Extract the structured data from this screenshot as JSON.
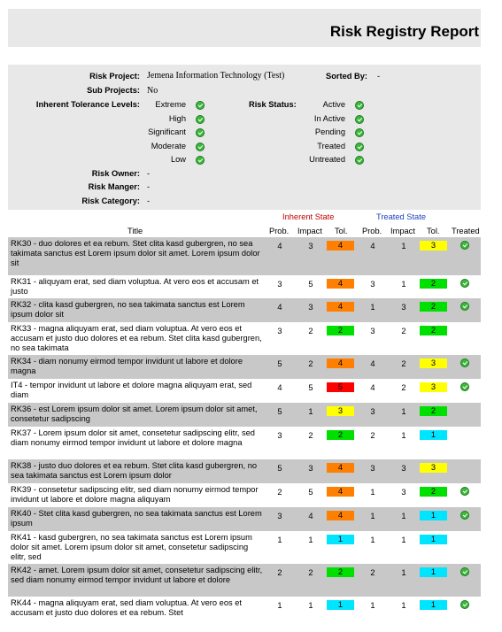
{
  "report": {
    "title": "Risk Registry Report"
  },
  "info": {
    "risk_project_label": "Risk Project:",
    "risk_project_value": "Jemena Information Technology (Test)",
    "sorted_by_label": "Sorted By:",
    "sorted_by_value": "-",
    "sub_projects_label": "Sub Projects:",
    "sub_projects_value": "No",
    "inherent_label": "Inherent Tolerance Levels:",
    "inherent_levels": [
      "Extreme",
      "High",
      "Significant",
      "Moderate",
      "Low"
    ],
    "risk_status_label": "Risk Status:",
    "statuses": [
      "Active",
      "In Active",
      "Pending",
      "Treated",
      "Untreated"
    ],
    "owner_label": "Risk Owner:",
    "owner_value": "-",
    "manager_label": "Risk Manger:",
    "manager_value": "-",
    "category_label": "Risk Category:",
    "category_value": "-"
  },
  "table": {
    "inherent_state": "Inherent State",
    "treated_state": "Treated State",
    "headers": {
      "title": "Title",
      "prob": "Prob.",
      "impact": "Impact",
      "tol": "Tol.",
      "prob2": "Prob.",
      "impact2": "Impact",
      "tol2": "Tol.",
      "treated": "Treated"
    },
    "colors": {
      "orange": "#ff7f00",
      "yellow": "#ffff00",
      "green": "#00e000",
      "red": "#ff0000",
      "cyan": "#00e5ff",
      "inherent_red": "#c00000",
      "treated_blue": "#1f3fbf"
    },
    "rows": [
      {
        "title": "RK30 - duo dolores et ea rebum. Stet clita kasd gubergren, no sea takimata sanctus est Lorem ipsum dolor sit amet. Lorem ipsum dolor sit",
        "ip": "4",
        "ii": "3",
        "it": "4",
        "ic": "orange",
        "tp": "4",
        "ti": "1",
        "tt": "3",
        "tc": "yellow",
        "treated": true
      },
      {
        "title": "RK31 - aliquyam erat, sed diam voluptua. At vero eos et accusam et justo",
        "ip": "3",
        "ii": "5",
        "it": "4",
        "ic": "orange",
        "tp": "3",
        "ti": "1",
        "tt": "2",
        "tc": "green",
        "treated": true
      },
      {
        "title": "RK32 - clita kasd gubergren, no sea takimata sanctus est Lorem ipsum dolor sit",
        "ip": "4",
        "ii": "3",
        "it": "4",
        "ic": "orange",
        "tp": "1",
        "ti": "3",
        "tt": "2",
        "tc": "green",
        "treated": true
      },
      {
        "title": "RK33 - magna aliquyam erat, sed diam voluptua. At vero eos et accusam et justo duo dolores et ea rebum. Stet clita kasd gubergren, no sea takimata",
        "ip": "3",
        "ii": "2",
        "it": "2",
        "ic": "green",
        "tp": "3",
        "ti": "2",
        "tt": "2",
        "tc": "green",
        "treated": false
      },
      {
        "title": "RK34 - diam nonumy eirmod tempor invidunt ut labore et dolore magna",
        "ip": "5",
        "ii": "2",
        "it": "4",
        "ic": "orange",
        "tp": "4",
        "ti": "2",
        "tt": "3",
        "tc": "yellow",
        "treated": true
      },
      {
        "title": "IT4 - tempor invidunt ut labore et dolore magna aliquyam erat, sed diam",
        "ip": "4",
        "ii": "5",
        "it": "5",
        "ic": "red",
        "tp": "4",
        "ti": "2",
        "tt": "3",
        "tc": "yellow",
        "treated": true
      },
      {
        "title": "RK36 - est Lorem ipsum dolor sit amet. Lorem ipsum dolor sit amet, consetetur sadipscing",
        "ip": "5",
        "ii": "1",
        "it": "3",
        "ic": "yellow",
        "tp": "3",
        "ti": "1",
        "tt": "2",
        "tc": "green",
        "treated": false
      },
      {
        "title": "RK37 - Lorem ipsum dolor sit amet, consetetur sadipscing elitr, sed diam nonumy eirmod tempor invidunt ut labore et dolore magna",
        "ip": "3",
        "ii": "2",
        "it": "2",
        "ic": "green",
        "tp": "2",
        "ti": "1",
        "tt": "1",
        "tc": "cyan",
        "treated": false
      },
      {
        "title": "RK38 - justo duo dolores et ea rebum. Stet clita kasd gubergren, no sea takimata sanctus est Lorem ipsum dolor",
        "ip": "5",
        "ii": "3",
        "it": "4",
        "ic": "orange",
        "tp": "3",
        "ti": "3",
        "tt": "3",
        "tc": "yellow",
        "treated": false
      },
      {
        "title": "RK39 - consetetur sadipscing elitr, sed diam nonumy eirmod tempor invidunt ut labore et dolore magna aliquyam",
        "ip": "2",
        "ii": "5",
        "it": "4",
        "ic": "orange",
        "tp": "1",
        "ti": "3",
        "tt": "2",
        "tc": "green",
        "treated": true
      },
      {
        "title": "RK40 - Stet clita kasd gubergren, no sea takimata sanctus est Lorem ipsum",
        "ip": "3",
        "ii": "4",
        "it": "4",
        "ic": "orange",
        "tp": "1",
        "ti": "1",
        "tt": "1",
        "tc": "cyan",
        "treated": true
      },
      {
        "title": "RK41 - kasd gubergren, no sea takimata sanctus est Lorem ipsum dolor sit amet. Lorem ipsum dolor sit amet, consetetur sadipscing elitr, sed",
        "ip": "1",
        "ii": "1",
        "it": "1",
        "ic": "cyan",
        "tp": "1",
        "ti": "1",
        "tt": "1",
        "tc": "cyan",
        "treated": false
      },
      {
        "title": "RK42 - amet. Lorem ipsum dolor sit amet, consetetur sadipscing elitr, sed diam nonumy eirmod tempor invidunt ut labore et dolore",
        "ip": "2",
        "ii": "2",
        "it": "2",
        "ic": "green",
        "tp": "2",
        "ti": "1",
        "tt": "1",
        "tc": "cyan",
        "treated": true
      },
      {
        "title": "RK44 - magna aliquyam erat, sed diam voluptua. At vero eos et accusam et justo duo dolores et ea rebum. Stet",
        "ip": "1",
        "ii": "1",
        "it": "1",
        "ic": "cyan",
        "tp": "1",
        "ti": "1",
        "tt": "1",
        "tc": "cyan",
        "treated": true
      }
    ]
  }
}
